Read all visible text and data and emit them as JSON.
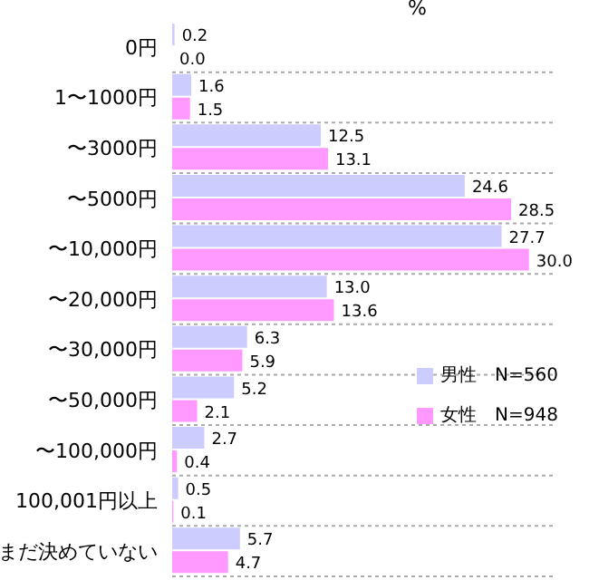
{
  "chart_data": {
    "type": "bar",
    "orientation": "horizontal",
    "title": "%",
    "categories": [
      "0円",
      "1〜1000円",
      "〜3000円",
      "〜5000円",
      "〜10,000円",
      "〜20,000円",
      "〜30,000円",
      "〜50,000円",
      "〜100,000円",
      "100,001円以上",
      "まだ決めていない"
    ],
    "series": [
      {
        "name": "男性　N=560",
        "color": "#ccccff",
        "values": [
          0.2,
          1.6,
          12.5,
          24.6,
          27.7,
          13.0,
          6.3,
          5.2,
          2.7,
          0.5,
          5.7
        ],
        "value_labels": [
          "0.2",
          "1.6",
          "12.5",
          "24.6",
          "27.7",
          "13.0",
          "6.3",
          "5.2",
          "2.7",
          "0.5",
          "5.7"
        ]
      },
      {
        "name": "女性　N=948",
        "color": "#ff99ff",
        "values": [
          0.0,
          1.5,
          13.1,
          28.5,
          30.0,
          13.6,
          5.9,
          2.1,
          0.4,
          0.1,
          4.7
        ],
        "value_labels": [
          "0.0",
          "1.5",
          "13.1",
          "28.5",
          "30.0",
          "13.6",
          "5.9",
          "2.1",
          "0.4",
          "0.1",
          "4.7"
        ]
      }
    ],
    "xlim": [
      0,
      32
    ],
    "tick_labels": "y",
    "grid": "y",
    "legend": "right"
  }
}
